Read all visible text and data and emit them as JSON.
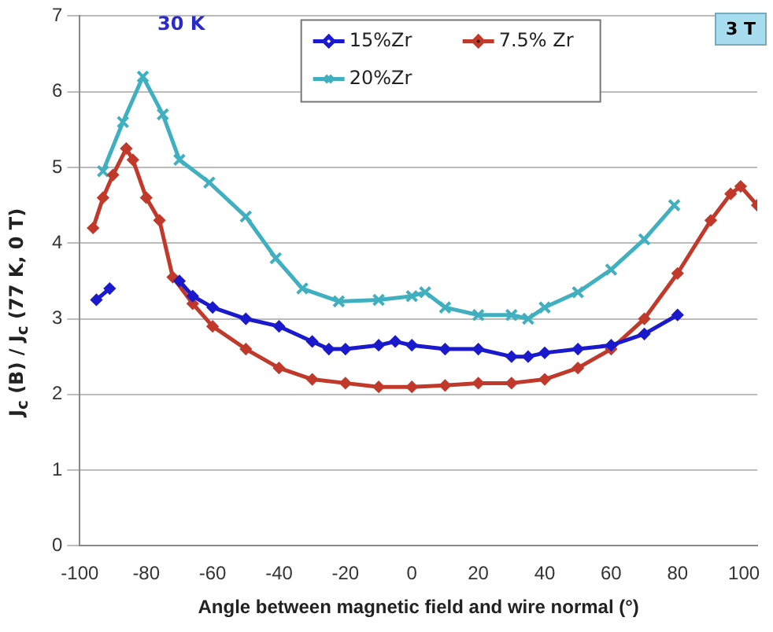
{
  "chart_data": {
    "type": "line",
    "xlabel": "Angle between magnetic field and wire normal (°)",
    "ylabel": "J$_{c}$ (B) / J$_{c}$ (77 K, 0 T)",
    "annotations": [
      "30 K",
      "3 T"
    ],
    "xlim": [
      -100,
      104
    ],
    "xticks": [
      -100,
      -80,
      -60,
      -40,
      -20,
      0,
      20,
      40,
      60,
      80,
      100
    ],
    "ylim": [
      0,
      7
    ],
    "yticks": [
      0,
      1,
      2,
      3,
      4,
      5,
      6,
      7
    ],
    "grid": "y",
    "legend": "top",
    "line_style": "solid",
    "series": [
      {
        "name": "15%Zr",
        "color": "#1a1acc",
        "marker": "diamond",
        "x": [
          -95,
          -91,
          null,
          -70,
          -66,
          -60,
          -50,
          -40,
          -30,
          -25,
          -20,
          -10,
          -5,
          0,
          10,
          20,
          30,
          35,
          40,
          50,
          60,
          70,
          80
        ],
        "values": [
          3.25,
          3.4,
          null,
          3.5,
          3.3,
          3.15,
          3.0,
          2.9,
          2.7,
          2.6,
          2.6,
          2.65,
          2.7,
          2.65,
          2.6,
          2.6,
          2.5,
          2.5,
          2.55,
          2.6,
          2.65,
          2.8,
          3.05
        ]
      },
      {
        "name": "7.5% Zr",
        "color": "#c0392b",
        "marker": "diamond",
        "x": [
          -96,
          -93,
          -90,
          -86,
          -84,
          -80,
          -76,
          -72,
          -66,
          -60,
          -50,
          -40,
          -30,
          -20,
          -10,
          0,
          10,
          20,
          30,
          40,
          50,
          60,
          70,
          80,
          90,
          96,
          99,
          104
        ],
        "values": [
          4.2,
          4.6,
          4.9,
          5.25,
          5.1,
          4.6,
          4.3,
          3.55,
          3.2,
          2.9,
          2.6,
          2.35,
          2.2,
          2.15,
          2.1,
          2.1,
          2.12,
          2.15,
          2.15,
          2.2,
          2.35,
          2.6,
          3.0,
          3.6,
          4.3,
          4.65,
          4.75,
          4.5
        ]
      },
      {
        "name": "20%Zr",
        "color": "#40b0c0",
        "marker": "cross",
        "x": [
          -93,
          -87,
          -81,
          -75,
          -70,
          -61,
          -50,
          -41,
          -33,
          -22,
          -10,
          0,
          4,
          10,
          20,
          30,
          35,
          40,
          50,
          60,
          70,
          79
        ],
        "values": [
          4.95,
          5.6,
          6.2,
          5.7,
          5.1,
          4.8,
          4.35,
          3.8,
          3.4,
          3.23,
          3.25,
          3.3,
          3.35,
          3.15,
          3.05,
          3.05,
          3.0,
          3.15,
          3.35,
          3.65,
          4.05,
          4.5
        ]
      }
    ]
  }
}
